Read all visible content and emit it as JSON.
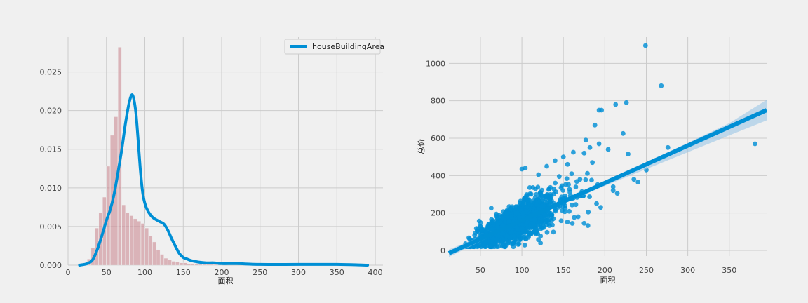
{
  "chart_data": [
    {
      "type": "bar",
      "subtype": "histogram-with-kde",
      "xlabel": "面积",
      "ylabel": "",
      "xlim": [
        0,
        410
      ],
      "ylim": [
        0,
        0.0295
      ],
      "xticks": [
        0,
        50,
        100,
        150,
        200,
        250,
        300,
        350,
        400
      ],
      "yticks": [
        0.0,
        0.005,
        0.01,
        0.015,
        0.02,
        0.025
      ],
      "ytick_labels": [
        "0.000",
        "0.005",
        "0.010",
        "0.015",
        "0.020",
        "0.025"
      ],
      "grid": true,
      "legend": {
        "position": "top-right",
        "entries": [
          "houseBuildingArea"
        ]
      },
      "bin_width": 5,
      "bin_start": 15,
      "hist_values": [
        0.0001,
        0.0003,
        0.0008,
        0.0022,
        0.0048,
        0.0068,
        0.0088,
        0.0128,
        0.0168,
        0.0192,
        0.0282,
        0.0078,
        0.0068,
        0.0064,
        0.006,
        0.0057,
        0.0054,
        0.0048,
        0.0038,
        0.003,
        0.002,
        0.0014,
        0.0009,
        0.0007,
        0.0005,
        0.0004,
        0.0003,
        0.0003,
        0.0002,
        0.0002,
        0.0002,
        0.0001,
        0.0001,
        0.0001,
        0.0001,
        0.0001,
        0.0001
      ],
      "kde": {
        "name": "houseBuildingArea",
        "x": [
          15,
          25,
          32,
          38,
          44,
          50,
          55,
          60,
          65,
          70,
          75,
          80,
          84,
          88,
          91,
          94,
          97,
          100,
          104,
          110,
          118,
          125,
          130,
          135,
          140,
          145,
          150,
          155,
          160,
          170,
          180,
          190,
          200,
          220,
          250,
          300,
          350,
          390
        ],
        "y": [
          0.0,
          0.0002,
          0.0007,
          0.002,
          0.0038,
          0.0058,
          0.0072,
          0.0092,
          0.012,
          0.015,
          0.0185,
          0.0212,
          0.022,
          0.02,
          0.0165,
          0.0125,
          0.0095,
          0.008,
          0.007,
          0.0062,
          0.0057,
          0.0053,
          0.0045,
          0.0034,
          0.0024,
          0.0015,
          0.001,
          0.0008,
          0.0006,
          0.0004,
          0.0003,
          0.0003,
          0.0002,
          0.0002,
          0.0001,
          0.0001,
          0.0001,
          0.0
        ]
      },
      "colors": {
        "hist": "#c9828a",
        "kde": "#008fd5"
      }
    },
    {
      "type": "scatter",
      "subtype": "regression",
      "xlabel": "面积",
      "ylabel": "总价",
      "xlim": [
        12,
        395
      ],
      "ylim": [
        -30,
        1140
      ],
      "xticks": [
        50,
        100,
        150,
        200,
        250,
        300,
        350
      ],
      "yticks": [
        0,
        200,
        400,
        600,
        800,
        1000
      ],
      "grid": true,
      "regression": {
        "x": [
          12,
          395
        ],
        "y": [
          -15,
          750
        ]
      },
      "confidence_band": {
        "x": [
          12,
          60,
          100,
          150,
          200,
          250,
          300,
          350,
          395
        ],
        "lower": [
          -35,
          70,
          150,
          250,
          345,
          435,
          525,
          615,
          695
        ],
        "upper": [
          5,
          90,
          165,
          265,
          365,
          470,
          575,
          680,
          805
        ]
      },
      "highlight_points": [
        {
          "x": 249,
          "y": 1095
        },
        {
          "x": 268,
          "y": 880
        },
        {
          "x": 381,
          "y": 570
        },
        {
          "x": 226,
          "y": 790
        },
        {
          "x": 193,
          "y": 750
        },
        {
          "x": 196,
          "y": 750
        },
        {
          "x": 213,
          "y": 780
        },
        {
          "x": 188,
          "y": 670
        },
        {
          "x": 222,
          "y": 625
        },
        {
          "x": 228,
          "y": 515
        },
        {
          "x": 276,
          "y": 550
        },
        {
          "x": 250,
          "y": 430
        },
        {
          "x": 235,
          "y": 380
        },
        {
          "x": 240,
          "y": 365
        },
        {
          "x": 100,
          "y": 435
        },
        {
          "x": 177,
          "y": 590
        },
        {
          "x": 175,
          "y": 520
        },
        {
          "x": 204,
          "y": 540
        },
        {
          "x": 193,
          "y": 570
        },
        {
          "x": 182,
          "y": 550
        },
        {
          "x": 210,
          "y": 340
        },
        {
          "x": 162,
          "y": 525
        },
        {
          "x": 215,
          "y": 305
        },
        {
          "x": 190,
          "y": 250
        },
        {
          "x": 195,
          "y": 230
        },
        {
          "x": 170,
          "y": 290
        },
        {
          "x": 150,
          "y": 500
        },
        {
          "x": 140,
          "y": 480
        },
        {
          "x": 130,
          "y": 450
        },
        {
          "x": 155,
          "y": 460
        },
        {
          "x": 185,
          "y": 470
        },
        {
          "x": 160,
          "y": 410
        },
        {
          "x": 145,
          "y": 395
        },
        {
          "x": 170,
          "y": 380
        },
        {
          "x": 120,
          "y": 405
        },
        {
          "x": 175,
          "y": 145
        },
        {
          "x": 180,
          "y": 205
        },
        {
          "x": 165,
          "y": 245
        },
        {
          "x": 210,
          "y": 320
        }
      ],
      "cluster_seed": 7,
      "cluster_count": 1250,
      "colors": {
        "points": "#008fd5",
        "line": "#008fd5",
        "band": "#9bc7e6"
      }
    }
  ]
}
